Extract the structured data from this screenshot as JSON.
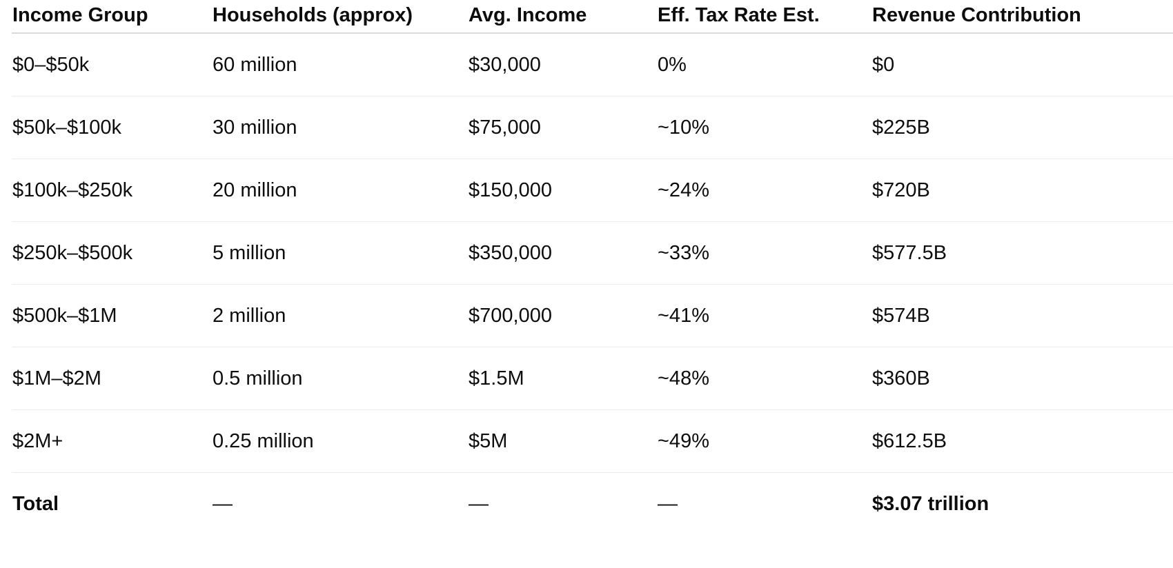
{
  "table": {
    "headers": [
      "Income Group",
      "Households (approx)",
      "Avg. Income",
      "Eff. Tax Rate Est.",
      "Revenue Contribution"
    ],
    "rows": [
      [
        "$0–$50k",
        "60 million",
        "$30,000",
        "0%",
        "$0"
      ],
      [
        "$50k–$100k",
        "30 million",
        "$75,000",
        "~10%",
        "$225B"
      ],
      [
        "$100k–$250k",
        "20 million",
        "$150,000",
        "~24%",
        "$720B"
      ],
      [
        "$250k–$500k",
        "5 million",
        "$350,000",
        "~33%",
        "$577.5B"
      ],
      [
        "$500k–$1M",
        "2 million",
        "$700,000",
        "~41%",
        "$574B"
      ],
      [
        "$1M–$2M",
        "0.5 million",
        "$1.5M",
        "~48%",
        "$360B"
      ],
      [
        "$2M+",
        "0.25 million",
        "$5M",
        "~49%",
        "$612.5B"
      ]
    ],
    "total": [
      "Total",
      "—",
      "—",
      "—",
      "$3.07 trillion"
    ]
  }
}
